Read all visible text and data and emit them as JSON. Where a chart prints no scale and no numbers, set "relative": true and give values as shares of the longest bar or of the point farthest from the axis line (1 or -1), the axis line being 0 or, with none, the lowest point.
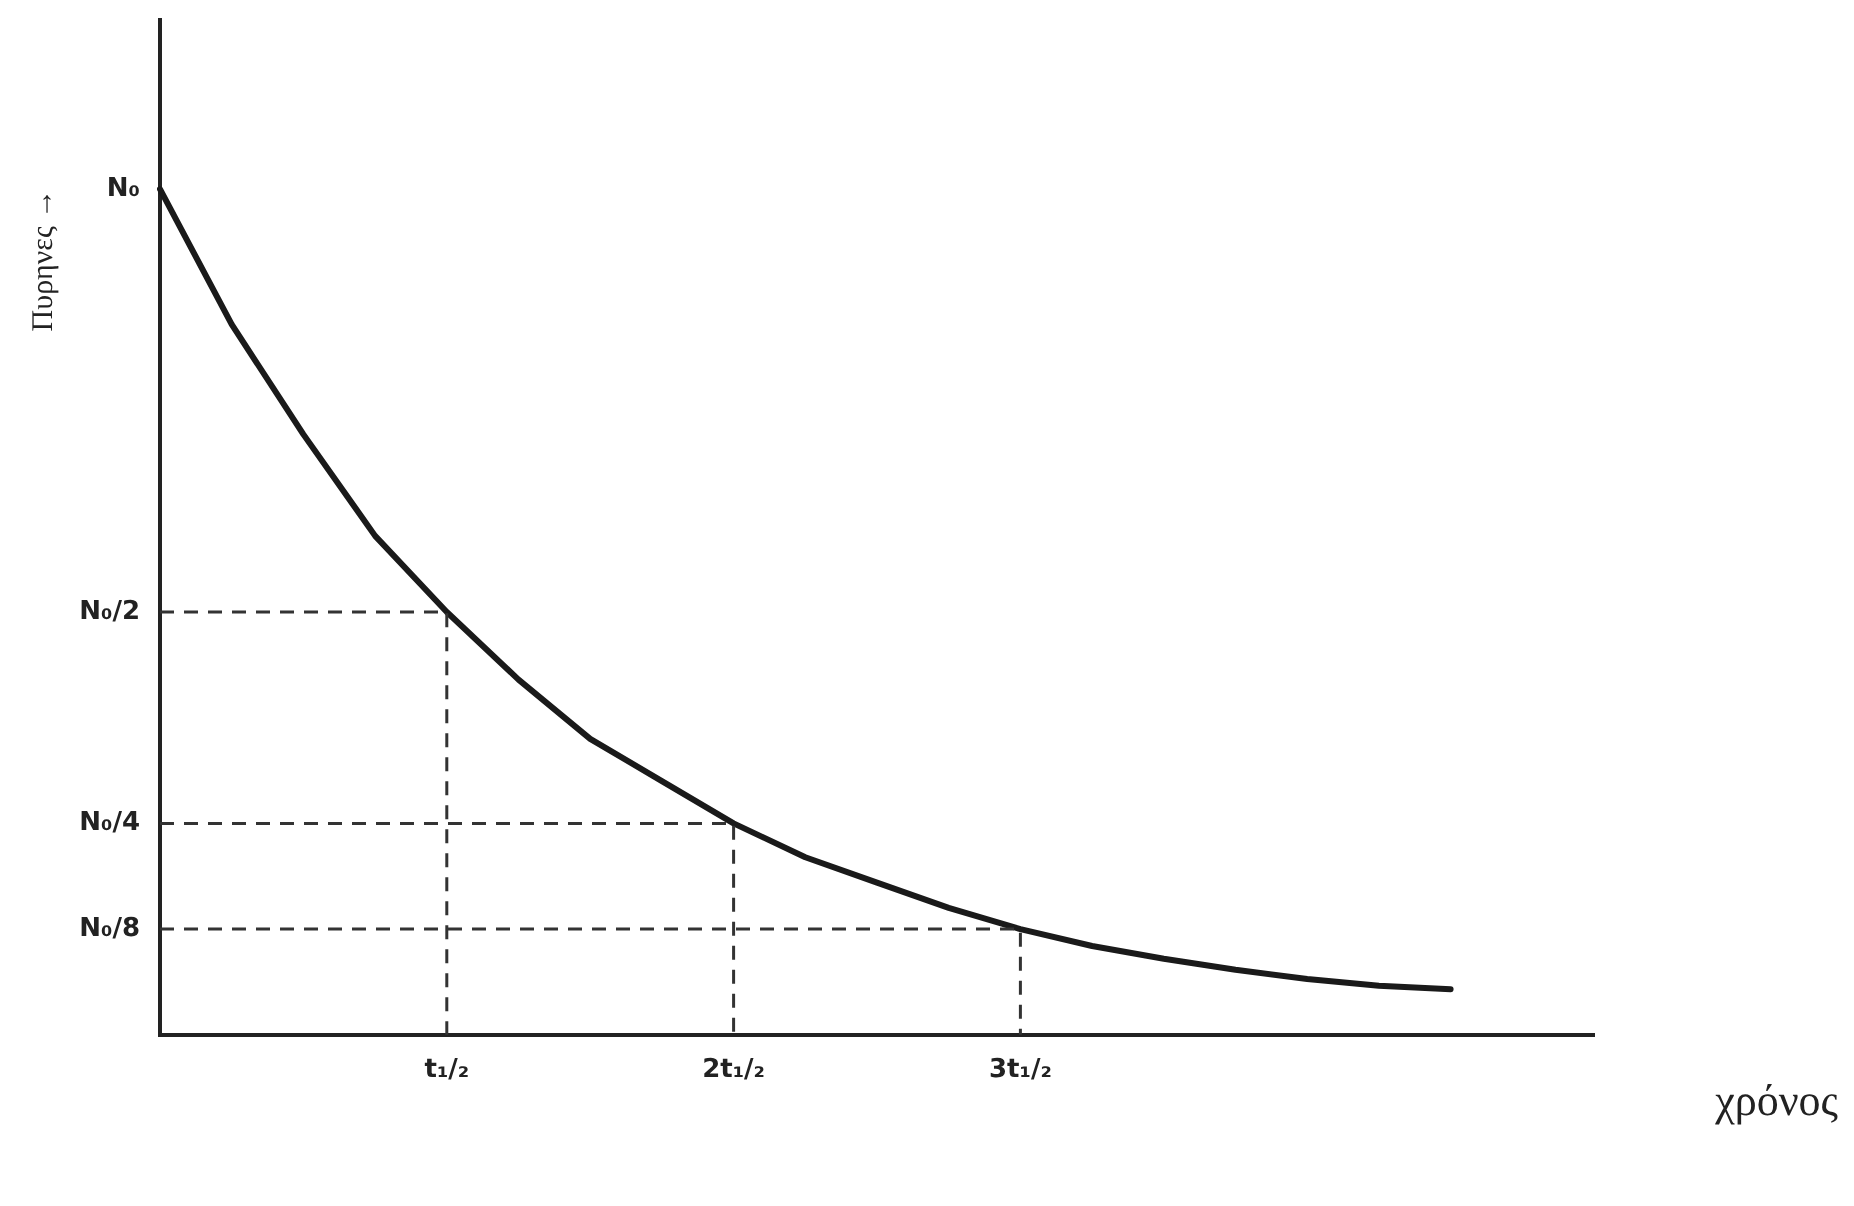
{
  "chart_data": {
    "type": "line",
    "xlabel": "χρόνος",
    "ylabel": "Πυρηνες →",
    "relative": true,
    "legend": false,
    "marker": "none",
    "categories": [
      null,
      null,
      null,
      null,
      "t₁/₂",
      null,
      null,
      null,
      "2t₁/₂",
      null,
      null,
      null,
      "3t₁/₂",
      null,
      null,
      null,
      null,
      null,
      null,
      null,
      null
    ],
    "annotations": [
      "N₀"
    ],
    "ref_lines": [
      {
        "axis": "y",
        "value": 0.5,
        "label": "N₀/2",
        "line_style": "dashed",
        "color": "#333333"
      },
      {
        "axis": "y",
        "value": 0.25,
        "label": "N₀/4",
        "line_style": "dashed",
        "color": "#333333"
      },
      {
        "axis": "y",
        "value": 0.125,
        "label": "N₀/8",
        "line_style": "dashed",
        "color": "#333333"
      }
    ],
    "series": [
      {
        "color": "#1a1a1a",
        "line_style": "solid",
        "values": [
          1,
          0.84,
          0.71,
          0.59,
          0.5,
          0.42,
          0.35,
          0.3,
          0.25,
          0.21,
          0.18,
          0.15,
          0.125,
          0.105,
          0.09,
          0.077,
          0.066,
          0.058,
          0.054,
          null,
          null
        ]
      }
    ]
  }
}
